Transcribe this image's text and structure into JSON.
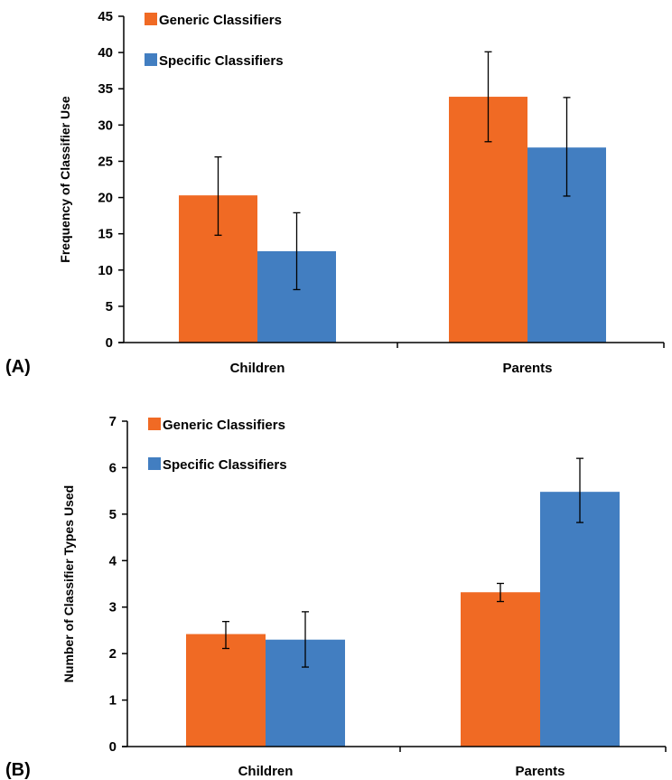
{
  "chart_data": [
    {
      "type": "bar",
      "panel_label": "(A)",
      "categories": [
        "Children",
        "Parents"
      ],
      "series": [
        {
          "name": "Generic Classifiers",
          "color": "#f06a24",
          "values": [
            20.3,
            33.9
          ],
          "error": [
            [
              14.8,
              25.6
            ],
            [
              27.7,
              40.1
            ]
          ]
        },
        {
          "name": "Specific Classifiers",
          "color": "#427ec1",
          "values": [
            12.6,
            26.9
          ],
          "error": [
            [
              7.3,
              17.9
            ],
            [
              20.2,
              33.8
            ]
          ]
        }
      ],
      "ylabel": "Frequency of Classifier Use",
      "xlabel": "",
      "ylim": [
        0,
        45
      ],
      "yticks": [
        0,
        5,
        10,
        15,
        20,
        25,
        30,
        35,
        40,
        45
      ],
      "legend": "top-left",
      "grid": false
    },
    {
      "type": "bar",
      "panel_label": "(B)",
      "categories": [
        "Children",
        "Parents"
      ],
      "series": [
        {
          "name": "Generic Classifiers",
          "color": "#f06a24",
          "values": [
            2.42,
            3.32
          ],
          "error": [
            [
              2.11,
              2.69
            ],
            [
              3.12,
              3.51
            ]
          ]
        },
        {
          "name": "Specific Classifiers",
          "color": "#427ec1",
          "values": [
            2.3,
            5.48
          ],
          "error": [
            [
              1.71,
              2.9
            ],
            [
              4.82,
              6.2
            ]
          ]
        }
      ],
      "ylabel": "Number of Classifier Types Used",
      "xlabel": "",
      "ylim": [
        0,
        7
      ],
      "yticks": [
        0,
        1,
        2,
        3,
        4,
        5,
        6,
        7
      ],
      "legend": "top-left",
      "grid": false
    }
  ]
}
